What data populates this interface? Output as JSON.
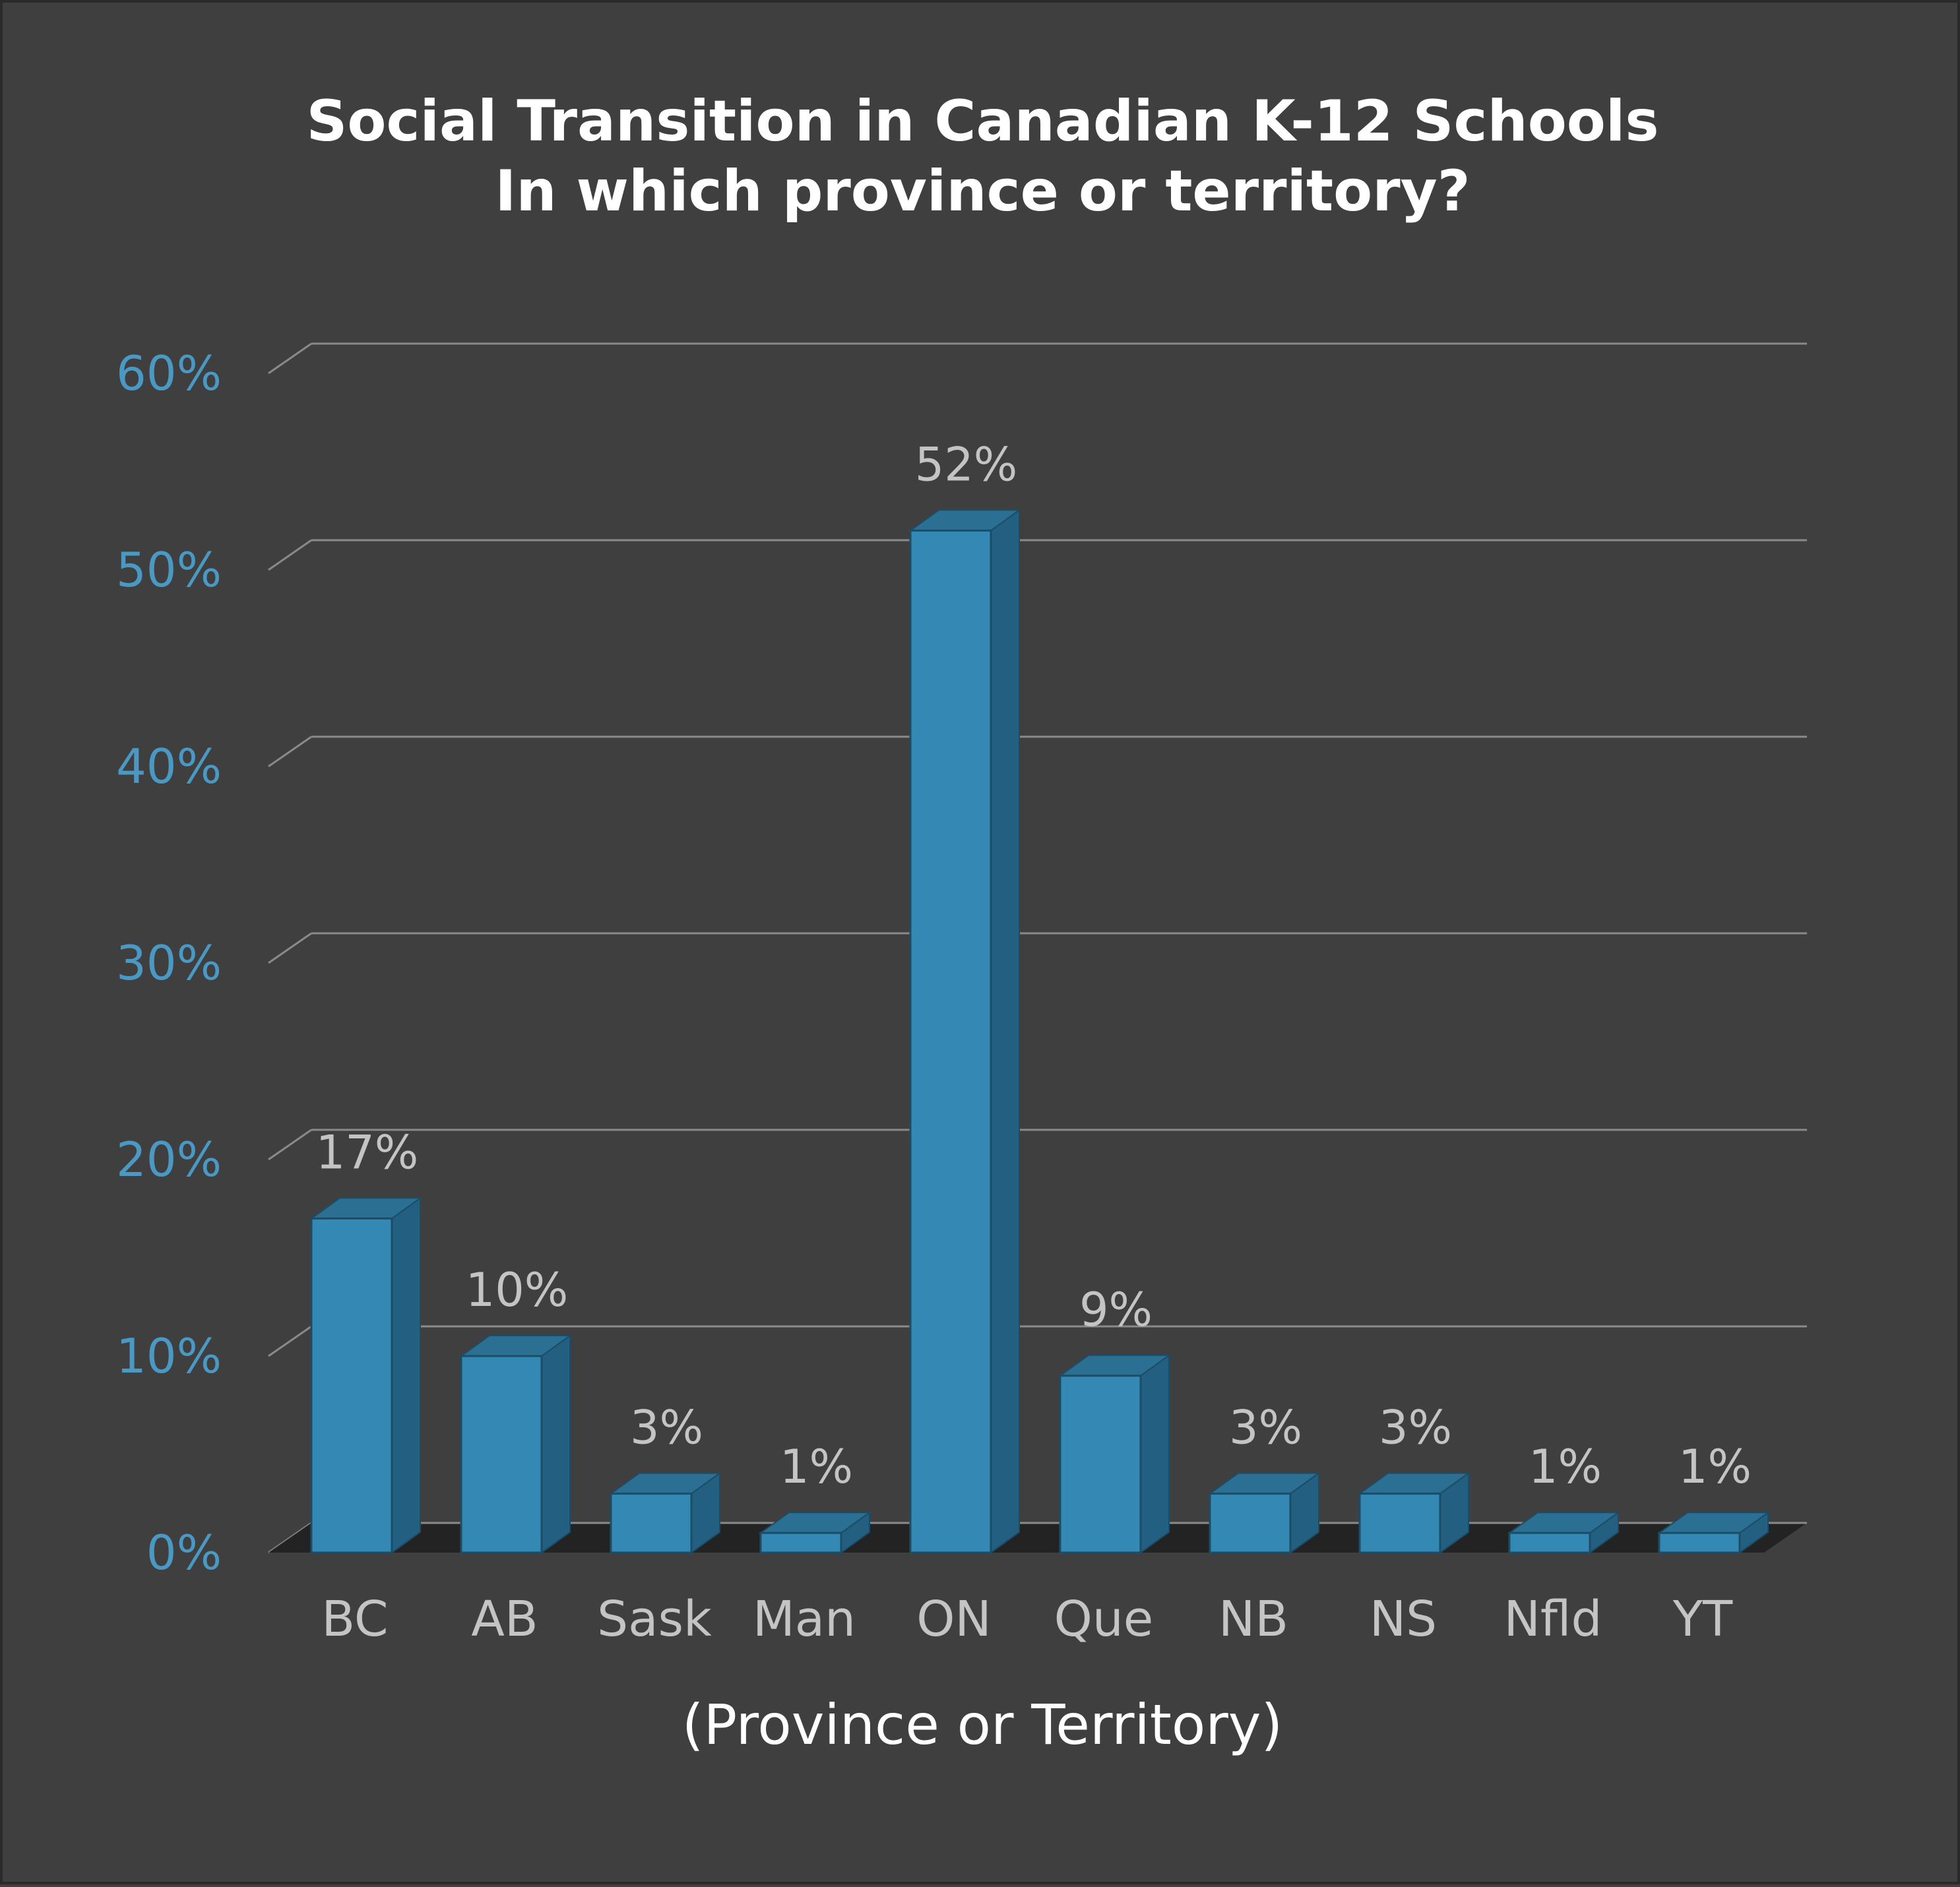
{
  "chart_data": {
    "type": "bar",
    "title": "Social Transition in Canadian K-12 Schools",
    "subtitle": "In which province or territory?",
    "xlabel": "(Province or Territory)",
    "ylabel": "",
    "categories": [
      "BC",
      "AB",
      "Sask",
      "Man",
      "ON",
      "Que",
      "NB",
      "NS",
      "Nfld",
      "YT"
    ],
    "values": [
      17,
      10,
      3,
      1,
      52,
      9,
      3,
      3,
      1,
      1
    ],
    "value_labels": [
      "17%",
      "10%",
      "3%",
      "1%",
      "52%",
      "9%",
      "3%",
      "3%",
      "1%",
      "1%"
    ],
    "ylim": [
      0,
      60
    ],
    "yticks": [
      0,
      10,
      20,
      30,
      40,
      50,
      60
    ],
    "ytick_labels": [
      "0%",
      "10%",
      "20%",
      "30%",
      "40%",
      "50%",
      "60%"
    ],
    "grid": true,
    "style": "3d-bar",
    "colors": {
      "background": "#3f3f3f",
      "bar_front": "#3389b3",
      "bar_side": "#235f80",
      "bar_top": "#2b6f93",
      "ytick_text": "#4a98c4",
      "label_text": "#c4c4c4",
      "grid": "#8a8a8a"
    }
  }
}
